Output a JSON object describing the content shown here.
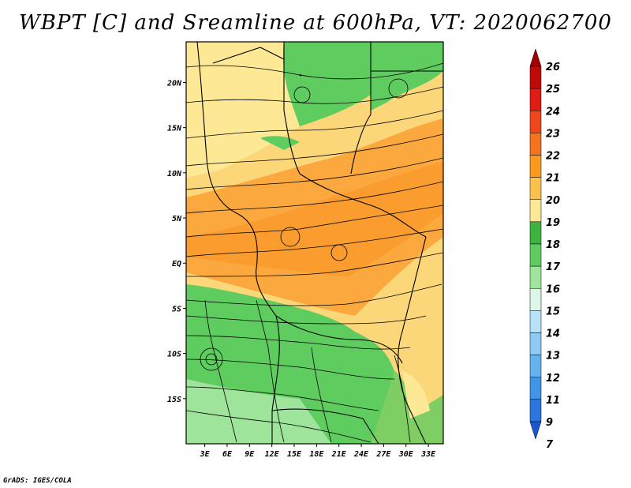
{
  "title": "WBPT [C] and Sreamline at 600hPa, VT: 2020062700",
  "credit": "GrADS: IGES/COLA",
  "map": {
    "lat_ticks": [
      {
        "lat": 20,
        "label": "20N"
      },
      {
        "lat": 15,
        "label": "15N"
      },
      {
        "lat": 10,
        "label": "10N"
      },
      {
        "lat": 5,
        "label": "5N"
      },
      {
        "lat": 0,
        "label": "EQ"
      },
      {
        "lat": -5,
        "label": "5S"
      },
      {
        "lat": -10,
        "label": "10S"
      },
      {
        "lat": -15,
        "label": "15S"
      }
    ],
    "lon_ticks": [
      {
        "lon": 3,
        "label": "3E"
      },
      {
        "lon": 6,
        "label": "6E"
      },
      {
        "lon": 9,
        "label": "9E"
      },
      {
        "lon": 12,
        "label": "12E"
      },
      {
        "lon": 15,
        "label": "15E"
      },
      {
        "lon": 18,
        "label": "18E"
      },
      {
        "lon": 21,
        "label": "21E"
      },
      {
        "lon": 24,
        "label": "24E"
      },
      {
        "lon": 27,
        "label": "27E"
      },
      {
        "lon": 30,
        "label": "30E"
      },
      {
        "lon": 33,
        "label": "33E"
      }
    ],
    "lon_range": [
      0.5,
      35.0
    ],
    "lat_range": [
      -20.0,
      24.5
    ]
  },
  "colorbar": {
    "labels": [
      "26",
      "25",
      "24",
      "23",
      "22",
      "21",
      "20",
      "19",
      "18",
      "17",
      "16",
      "15",
      "14",
      "13",
      "12",
      "11",
      "9",
      "7"
    ],
    "colors": [
      "#a50000",
      "#c00a0a",
      "#e11b16",
      "#f0461e",
      "#f6731e",
      "#fa9b1f",
      "#fcc14d",
      "#fde896",
      "#3fb33f",
      "#5fcc5f",
      "#9ee49a",
      "#dcf6e8",
      "#b7e2f8",
      "#8ecaf4",
      "#66b2ee",
      "#4195e6",
      "#2a75de",
      "#1a55d2"
    ]
  }
}
